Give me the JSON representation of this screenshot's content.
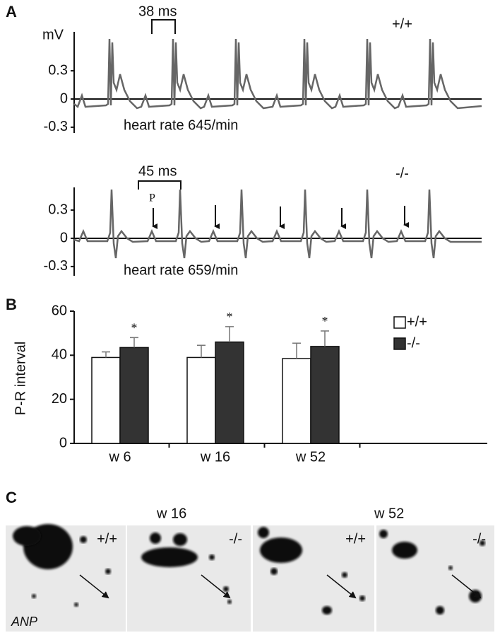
{
  "panel_a": {
    "label": "A",
    "unit": "mV",
    "traces": [
      {
        "genotype": "+/+",
        "interval": "38 ms",
        "heart_rate": "heart rate 645/min",
        "yticks": [
          0.3,
          0,
          -0.3
        ]
      },
      {
        "genotype": "-/-",
        "interval": "45 ms",
        "p_label": "P",
        "heart_rate": "heart rate 659/min",
        "yticks": [
          0.3,
          0,
          -0.3
        ]
      }
    ]
  },
  "chart_data": {
    "type": "bar",
    "label": "B",
    "ylabel": "P-R interval",
    "categories": [
      "w 6",
      "w 16",
      "w 52"
    ],
    "series": [
      {
        "name": "+/+",
        "color": "#ffffff",
        "values": [
          39,
          39,
          38.5
        ],
        "errors": [
          2.5,
          5.5,
          7
        ]
      },
      {
        "name": "-/-",
        "color": "#333333",
        "values": [
          43.5,
          46,
          44
        ],
        "errors": [
          4.5,
          7,
          7
        ],
        "annotations": [
          "*",
          "*",
          "*"
        ]
      }
    ],
    "ylim": [
      0,
      60
    ],
    "yticks": [
      0,
      20,
      40,
      60
    ],
    "legend": "upper right"
  },
  "panel_c": {
    "label": "C",
    "columns": [
      "w 16",
      "w 52"
    ],
    "panels": [
      "+/+",
      "-/-",
      "+/+",
      "-/-"
    ],
    "protein": "ANP"
  }
}
